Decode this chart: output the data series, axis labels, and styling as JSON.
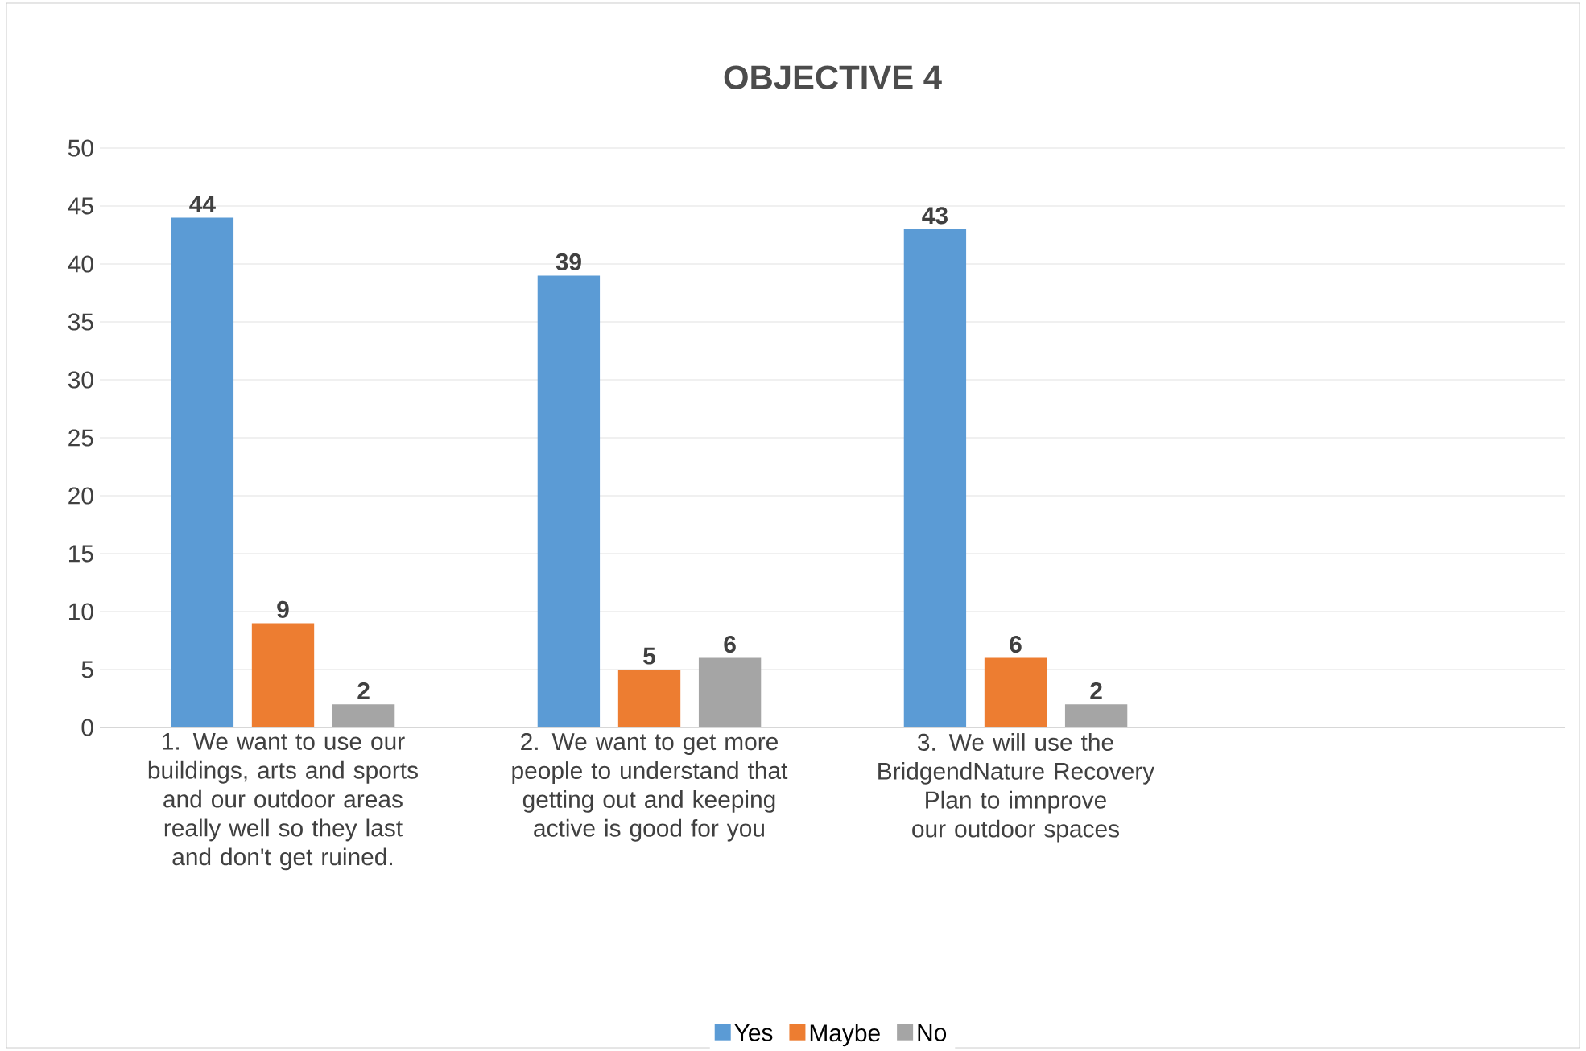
{
  "chart_data": {
    "type": "bar",
    "title": "OBJECTIVE 4",
    "categories": [
      "1. We want to use our buildings, arts and sports and our outdoor areas really well so they last and don't get ruined.",
      "2. We want to get more people to understand that getting out and keeping active is good for you",
      "3. We will use the BridgendNature Recovery Plan to imnprove our outdoor spaces",
      null
    ],
    "series": [
      {
        "name": "Yes",
        "color": "#5b9bd5",
        "values": [
          44,
          39,
          43,
          null
        ]
      },
      {
        "name": "Maybe",
        "color": "#ed7d31",
        "values": [
          9,
          5,
          6,
          null
        ]
      },
      {
        "name": "No",
        "color": "#a5a5a5",
        "values": [
          2,
          6,
          2,
          null
        ]
      }
    ],
    "ylim": [
      0,
      50
    ],
    "yticks": [
      0,
      5,
      10,
      15,
      20,
      25,
      30,
      35,
      40,
      45,
      50
    ],
    "grid": "y",
    "legend": "bottom",
    "data_labels": true
  }
}
